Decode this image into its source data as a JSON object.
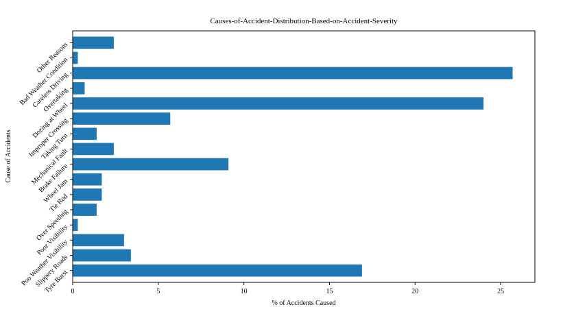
{
  "chart_data": {
    "type": "bar",
    "orientation": "horizontal",
    "title": "Causes-of-Accident-Distribution-Based-on-Accident-Severity",
    "xlabel": "% of Accidents Caused",
    "ylabel": "Cause of Accidents",
    "xlim": [
      0,
      27
    ],
    "xticks": [
      0,
      5,
      10,
      15,
      20,
      25
    ],
    "grid": false,
    "bar_color": "#1f77b4",
    "categories": [
      "Tyre Burst",
      "Slippery Roads",
      "Poo Weather Visibility",
      "Poor Visibility",
      "Over Speeding",
      "Tie Rod",
      "Wheel Jam",
      "Brake Failure",
      "Mechanical Fault",
      "Taking Turn",
      "Improper Crossing",
      "Dozing at Wheel",
      "Overtaking",
      "Careless Driving",
      "Bad Weather Condition",
      "Other Reasons"
    ],
    "values": [
      16.9,
      3.4,
      3.0,
      0.3,
      1.4,
      1.7,
      1.7,
      9.1,
      2.4,
      1.4,
      5.7,
      24.0,
      0.7,
      25.7,
      0.3,
      2.4
    ]
  }
}
